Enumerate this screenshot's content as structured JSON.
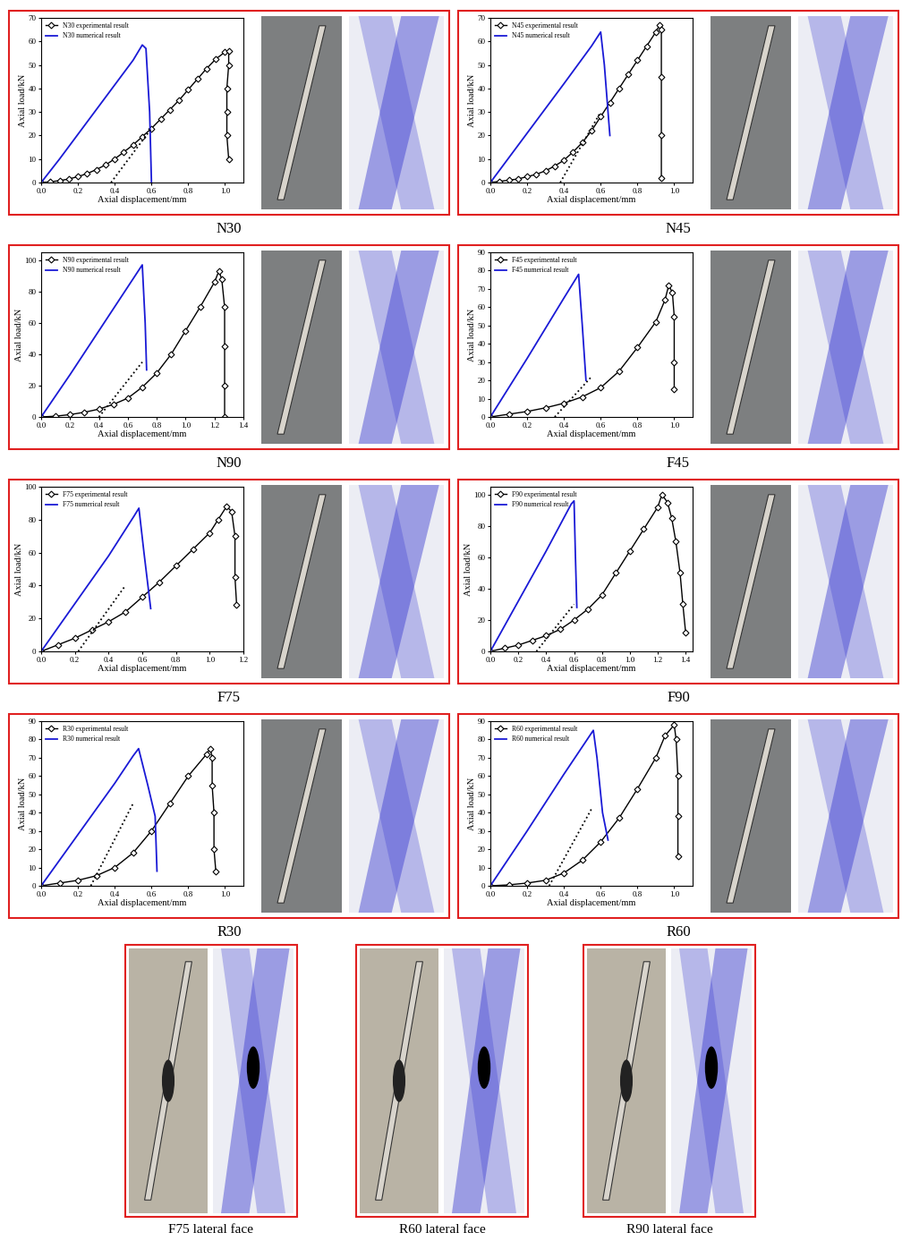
{
  "chart_data": [
    {
      "type": "line",
      "title": "N30",
      "x_label": "Axial displacement/mm",
      "y_label": "Axial load/kN",
      "xlim": [
        0.0,
        1.1
      ],
      "xticks": [
        0.0,
        0.2,
        0.4,
        0.6,
        0.8,
        1.0
      ],
      "ylim": [
        0,
        70
      ],
      "yticks": [
        0,
        10,
        20,
        30,
        40,
        50,
        60,
        70
      ],
      "legend": "upper left",
      "series": [
        {
          "name": "N30 experimental result",
          "color": "#000000",
          "marker": "diamond",
          "line_style": "solid",
          "x": [
            0.0,
            0.05,
            0.1,
            0.15,
            0.2,
            0.25,
            0.3,
            0.35,
            0.4,
            0.45,
            0.5,
            0.55,
            0.6,
            0.65,
            0.7,
            0.75,
            0.8,
            0.85,
            0.9,
            0.95,
            1.0,
            1.02,
            1.02,
            1.01,
            1.01,
            1.01,
            1.02
          ],
          "values": [
            0,
            0.3,
            0.8,
            1.5,
            2.5,
            3.8,
            5.5,
            7.5,
            10,
            13,
            16,
            19.5,
            23,
            27,
            31,
            35,
            39.5,
            44,
            48.5,
            52.5,
            55.5,
            55.8,
            50,
            40,
            30,
            20,
            10
          ]
        },
        {
          "name": "N30 numerical result",
          "color": "#1a1ad6",
          "marker": "none",
          "line_style": "solid",
          "x": [
            0.0,
            0.1,
            0.2,
            0.3,
            0.4,
            0.5,
            0.55,
            0.57,
            0.59,
            0.6
          ],
          "values": [
            0,
            10,
            20.5,
            31,
            41.5,
            52,
            58.5,
            57,
            30,
            0
          ]
        },
        {
          "color": "#000000",
          "marker": "none",
          "line_style": "dotted",
          "x": [
            0.38,
            0.6
          ],
          "values": [
            0,
            23
          ]
        }
      ]
    },
    {
      "type": "line",
      "title": "N45",
      "x_label": "Axial displacement/mm",
      "y_label": "Axial load/kN",
      "xlim": [
        0.0,
        1.1
      ],
      "xticks": [
        0.0,
        0.2,
        0.4,
        0.6,
        0.8,
        1.0
      ],
      "ylim": [
        0,
        70
      ],
      "yticks": [
        0,
        10,
        20,
        30,
        40,
        50,
        60,
        70
      ],
      "legend": "upper left",
      "series": [
        {
          "name": "N45 experimental result",
          "color": "#000000",
          "marker": "diamond",
          "line_style": "solid",
          "x": [
            0.0,
            0.05,
            0.1,
            0.15,
            0.2,
            0.25,
            0.3,
            0.35,
            0.4,
            0.45,
            0.5,
            0.55,
            0.6,
            0.65,
            0.7,
            0.75,
            0.8,
            0.85,
            0.9,
            0.92,
            0.93,
            0.93,
            0.93,
            0.93
          ],
          "values": [
            0,
            0.5,
            1,
            1.5,
            2.5,
            3.5,
            5,
            7,
            9.5,
            13,
            17,
            22,
            28,
            34,
            40,
            46,
            52,
            58,
            64,
            67,
            65,
            45,
            20,
            2
          ]
        },
        {
          "name": "N45 numerical result",
          "color": "#1a1ad6",
          "marker": "none",
          "line_style": "solid",
          "x": [
            0.0,
            0.2,
            0.4,
            0.55,
            0.6,
            0.62,
            0.65
          ],
          "values": [
            0,
            21,
            42,
            58,
            64,
            50,
            20
          ]
        },
        {
          "color": "#000000",
          "marker": "none",
          "line_style": "dotted",
          "x": [
            0.38,
            0.6
          ],
          "values": [
            0,
            30
          ]
        }
      ]
    },
    {
      "type": "line",
      "title": "N90",
      "x_label": "Axial displacement/mm",
      "y_label": "Axial load/kN",
      "xlim": [
        0.0,
        1.4
      ],
      "xticks": [
        0.0,
        0.2,
        0.4,
        0.6,
        0.8,
        1.0,
        1.2,
        1.4
      ],
      "ylim": [
        0,
        105
      ],
      "yticks": [
        0,
        20,
        40,
        60,
        80,
        100
      ],
      "legend": "upper left",
      "series": [
        {
          "name": "N90 experimental result",
          "color": "#000000",
          "marker": "diamond",
          "line_style": "solid",
          "x": [
            0.0,
            0.1,
            0.2,
            0.3,
            0.4,
            0.5,
            0.6,
            0.7,
            0.8,
            0.9,
            1.0,
            1.1,
            1.2,
            1.23,
            1.25,
            1.27,
            1.27,
            1.27,
            1.27
          ],
          "values": [
            0,
            0.5,
            1.5,
            3,
            5,
            8,
            12,
            19,
            28,
            40,
            55,
            70,
            86,
            93,
            88,
            70,
            45,
            20,
            0
          ]
        },
        {
          "name": "N90 numerical result",
          "color": "#1a1ad6",
          "marker": "none",
          "line_style": "solid",
          "x": [
            0.0,
            0.2,
            0.4,
            0.6,
            0.7,
            0.72,
            0.73
          ],
          "values": [
            0,
            27,
            55,
            83,
            97,
            60,
            30
          ]
        },
        {
          "color": "#000000",
          "marker": "none",
          "line_style": "dotted",
          "x": [
            0.4,
            0.7
          ],
          "values": [
            0,
            35
          ]
        }
      ]
    },
    {
      "type": "line",
      "title": "F45",
      "x_label": "Axial displacement/mm",
      "y_label": "Axial load/kN",
      "xlim": [
        0.0,
        1.1
      ],
      "xticks": [
        0.0,
        0.2,
        0.4,
        0.6,
        0.8,
        1.0
      ],
      "ylim": [
        0,
        90
      ],
      "yticks": [
        0,
        10,
        20,
        30,
        40,
        50,
        60,
        70,
        80,
        90
      ],
      "legend": "upper left",
      "series": [
        {
          "name": "F45 experimental result",
          "color": "#000000",
          "marker": "diamond",
          "line_style": "solid",
          "x": [
            0.0,
            0.1,
            0.2,
            0.3,
            0.4,
            0.5,
            0.6,
            0.7,
            0.8,
            0.9,
            0.95,
            0.97,
            0.99,
            1.0,
            1.0,
            1.0
          ],
          "values": [
            0,
            1.5,
            3,
            5,
            7.5,
            11,
            16,
            25,
            38,
            52,
            64,
            72,
            68,
            55,
            30,
            15
          ]
        },
        {
          "name": "F45 numerical result",
          "color": "#1a1ad6",
          "marker": "none",
          "line_style": "solid",
          "x": [
            0.0,
            0.2,
            0.4,
            0.48,
            0.5,
            0.52
          ],
          "values": [
            0,
            32,
            65,
            78,
            50,
            20
          ]
        },
        {
          "color": "#000000",
          "marker": "none",
          "line_style": "dotted",
          "x": [
            0.35,
            0.55
          ],
          "values": [
            0,
            22
          ]
        }
      ]
    },
    {
      "type": "line",
      "title": "F75",
      "x_label": "Axial displacement/mm",
      "y_label": "Axial load/kN",
      "xlim": [
        0.0,
        1.2
      ],
      "xticks": [
        0.0,
        0.2,
        0.4,
        0.6,
        0.8,
        1.0,
        1.2
      ],
      "ylim": [
        0,
        100
      ],
      "yticks": [
        0,
        20,
        40,
        60,
        80,
        100
      ],
      "legend": "upper left",
      "series": [
        {
          "name": "F75 experimental result",
          "color": "#000000",
          "marker": "diamond",
          "line_style": "solid",
          "x": [
            0.0,
            0.1,
            0.2,
            0.3,
            0.4,
            0.5,
            0.6,
            0.7,
            0.8,
            0.9,
            1.0,
            1.05,
            1.1,
            1.13,
            1.15,
            1.15,
            1.16
          ],
          "values": [
            0,
            4,
            8,
            13,
            18,
            24,
            33,
            42,
            52,
            62,
            72,
            80,
            88,
            85,
            70,
            45,
            28
          ]
        },
        {
          "name": "F75 numerical result",
          "color": "#1a1ad6",
          "marker": "none",
          "line_style": "solid",
          "x": [
            0.0,
            0.2,
            0.4,
            0.55,
            0.58,
            0.61,
            0.65
          ],
          "values": [
            0,
            29,
            58,
            82,
            87,
            60,
            26
          ]
        },
        {
          "color": "#000000",
          "marker": "none",
          "line_style": "dotted",
          "x": [
            0.22,
            0.5
          ],
          "values": [
            0,
            40
          ]
        }
      ]
    },
    {
      "type": "line",
      "title": "F90",
      "x_label": "Axial displacement/mm",
      "y_label": "Axial load/kN",
      "xlim": [
        0.0,
        1.45
      ],
      "xticks": [
        0.0,
        0.2,
        0.4,
        0.6,
        0.8,
        1.0,
        1.2,
        1.4
      ],
      "ylim": [
        0,
        105
      ],
      "yticks": [
        0,
        20,
        40,
        60,
        80,
        100
      ],
      "legend": "upper left",
      "series": [
        {
          "name": "F90 experimental result",
          "color": "#000000",
          "marker": "diamond",
          "line_style": "solid",
          "x": [
            0.0,
            0.1,
            0.2,
            0.3,
            0.4,
            0.5,
            0.6,
            0.7,
            0.8,
            0.9,
            1.0,
            1.1,
            1.2,
            1.23,
            1.27,
            1.3,
            1.33,
            1.36,
            1.38,
            1.4
          ],
          "values": [
            0,
            2,
            4,
            7,
            10,
            14,
            20,
            27,
            36,
            50,
            64,
            78,
            92,
            100,
            95,
            85,
            70,
            50,
            30,
            12
          ]
        },
        {
          "name": "F90 numerical result",
          "color": "#1a1ad6",
          "marker": "none",
          "line_style": "solid",
          "x": [
            0.0,
            0.2,
            0.4,
            0.58,
            0.6,
            0.61,
            0.62
          ],
          "values": [
            0,
            32,
            64,
            94,
            96,
            60,
            28
          ]
        },
        {
          "color": "#000000",
          "marker": "none",
          "line_style": "dotted",
          "x": [
            0.33,
            0.6
          ],
          "values": [
            0,
            30
          ]
        }
      ]
    },
    {
      "type": "line",
      "title": "R30",
      "x_label": "Axial displacement/mm",
      "y_label": "Axial load/kN",
      "xlim": [
        0.0,
        1.1
      ],
      "xticks": [
        0.0,
        0.2,
        0.4,
        0.6,
        0.8,
        1.0
      ],
      "ylim": [
        0,
        90
      ],
      "yticks": [
        0,
        10,
        20,
        30,
        40,
        50,
        60,
        70,
        80,
        90
      ],
      "legend": "upper left",
      "series": [
        {
          "name": "R30 experimental result",
          "color": "#000000",
          "marker": "diamond",
          "line_style": "solid",
          "x": [
            0.0,
            0.1,
            0.2,
            0.3,
            0.4,
            0.5,
            0.6,
            0.7,
            0.8,
            0.9,
            0.92,
            0.93,
            0.93,
            0.94,
            0.94,
            0.95
          ],
          "values": [
            0,
            1.5,
            3,
            5.5,
            10,
            18,
            30,
            45,
            60,
            72,
            75,
            70,
            55,
            40,
            20,
            8
          ]
        },
        {
          "name": "R30 numerical result",
          "color": "#1a1ad6",
          "marker": "none",
          "line_style": "solid",
          "x": [
            0.0,
            0.2,
            0.4,
            0.5,
            0.53,
            0.58,
            0.62,
            0.63
          ],
          "values": [
            0,
            28,
            56,
            71,
            75,
            55,
            38,
            8
          ]
        },
        {
          "color": "#000000",
          "marker": "none",
          "line_style": "dotted",
          "x": [
            0.27,
            0.5
          ],
          "values": [
            0,
            45
          ]
        }
      ]
    },
    {
      "type": "line",
      "title": "R60",
      "x_label": "Axial displacement/mm",
      "y_label": "Axial load/kN",
      "xlim": [
        0.0,
        1.1
      ],
      "xticks": [
        0.0,
        0.2,
        0.4,
        0.6,
        0.8,
        1.0
      ],
      "ylim": [
        0,
        90
      ],
      "yticks": [
        0,
        10,
        20,
        30,
        40,
        50,
        60,
        70,
        80,
        90
      ],
      "legend": "upper left",
      "series": [
        {
          "name": "R60 experimental result",
          "color": "#000000",
          "marker": "diamond",
          "line_style": "solid",
          "x": [
            0.0,
            0.1,
            0.2,
            0.3,
            0.4,
            0.5,
            0.6,
            0.7,
            0.8,
            0.9,
            0.95,
            1.0,
            1.01,
            1.02,
            1.02,
            1.02
          ],
          "values": [
            0,
            0.5,
            1.5,
            3,
            7,
            14,
            24,
            37,
            53,
            70,
            82,
            88,
            80,
            60,
            38,
            16
          ]
        },
        {
          "name": "R60 numerical result",
          "color": "#1a1ad6",
          "marker": "none",
          "line_style": "solid",
          "x": [
            0.0,
            0.2,
            0.4,
            0.5,
            0.56,
            0.58,
            0.61,
            0.64
          ],
          "values": [
            0,
            30,
            61,
            76,
            85,
            70,
            40,
            25
          ]
        },
        {
          "color": "#000000",
          "marker": "none",
          "line_style": "dotted",
          "x": [
            0.32,
            0.55
          ],
          "values": [
            0,
            42
          ]
        }
      ]
    }
  ],
  "photos": [
    {
      "caption": "F75 lateral face"
    },
    {
      "caption": "R60 lateral face"
    },
    {
      "caption": "R90 lateral face"
    }
  ]
}
